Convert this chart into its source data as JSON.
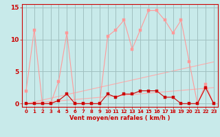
{
  "title": "",
  "xlabel": "Vent moyen/en rafales ( km/h )",
  "ylabel": "",
  "background_color": "#c8eaea",
  "grid_color": "#a0c0c0",
  "xlim": [
    -0.5,
    23.5
  ],
  "ylim": [
    -0.5,
    15.5
  ],
  "xticks": [
    0,
    1,
    2,
    3,
    4,
    5,
    6,
    7,
    8,
    9,
    10,
    11,
    12,
    13,
    14,
    15,
    16,
    17,
    18,
    19,
    20,
    21,
    22,
    23
  ],
  "yticks": [
    0,
    5,
    10,
    15
  ],
  "line1_x": [
    0,
    1,
    2,
    3,
    4,
    5,
    6,
    7,
    8,
    9,
    10,
    11,
    12,
    13,
    14,
    15,
    16,
    17,
    18,
    19,
    20,
    21,
    22,
    23
  ],
  "line1_y": [
    2,
    11.5,
    0,
    0,
    3.5,
    11,
    0,
    0,
    0,
    0,
    10.5,
    11.5,
    13,
    8.5,
    11.5,
    14.5,
    14.5,
    13,
    11,
    13,
    6.5,
    0,
    3,
    0
  ],
  "line2_x": [
    0,
    1,
    2,
    3,
    4,
    5,
    6,
    7,
    8,
    9,
    10,
    11,
    12,
    13,
    14,
    15,
    16,
    17,
    18,
    19,
    20,
    21,
    22,
    23
  ],
  "line2_y": [
    0,
    0,
    0,
    0,
    0.5,
    1.5,
    0,
    0,
    0,
    0,
    1.5,
    1,
    1.5,
    1.5,
    2,
    2,
    2,
    1,
    1,
    0,
    0,
    0,
    2.5,
    0
  ],
  "line3_x": [
    0,
    23
  ],
  "line3_y": [
    0,
    6.5
  ],
  "line4_x": [
    0,
    23
  ],
  "line4_y": [
    0,
    2.5
  ],
  "line1_color": "#ff9999",
  "line2_color": "#cc0000",
  "line3_color": "#ffaaaa",
  "line4_color": "#ffaaaa",
  "marker_size": 2.5,
  "line_width": 0.8,
  "tick_label_color": "#cc0000",
  "xlabel_color": "#cc0000",
  "tick_color": "#cc0000",
  "xlabel_fontsize": 6.0,
  "ytick_fontsize": 6.5,
  "xtick_fontsize": 5.0
}
